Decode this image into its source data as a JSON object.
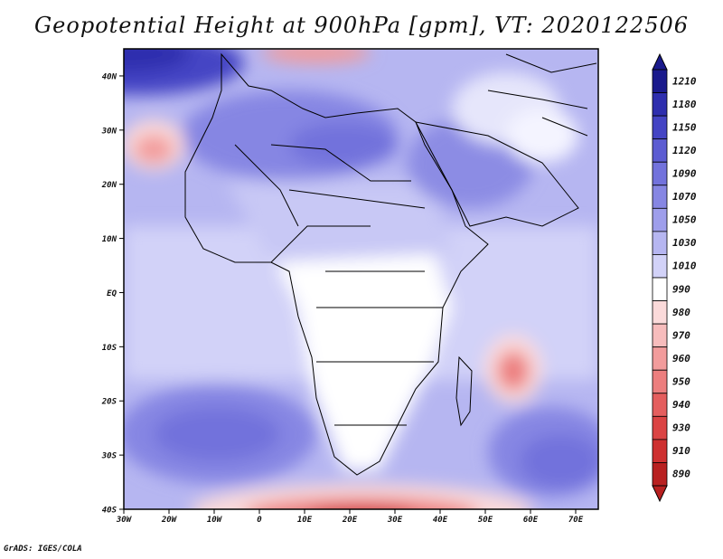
{
  "title": "Geopotential Height at 900hPa [gpm], VT: 2020122506",
  "credit": "GrADS: IGES/COLA",
  "map": {
    "lon_range": [
      -30,
      75
    ],
    "lat_range": [
      -40,
      45
    ],
    "lat_labels": [
      "40N",
      "30N",
      "20N",
      "10N",
      "EQ",
      "10S",
      "20S",
      "30S",
      "40S"
    ],
    "lat_values": [
      40,
      30,
      20,
      10,
      0,
      -10,
      -20,
      -30,
      -40
    ],
    "lon_labels": [
      "30W",
      "20W",
      "10W",
      "0",
      "10E",
      "20E",
      "30E",
      "40E",
      "50E",
      "60E",
      "70E"
    ],
    "lon_values": [
      -30,
      -20,
      -10,
      0,
      10,
      20,
      30,
      40,
      50,
      60,
      70
    ]
  },
  "colorbar": {
    "labels": [
      "1210",
      "1180",
      "1150",
      "1120",
      "1090",
      "1070",
      "1050",
      "1030",
      "1010",
      "990",
      "980",
      "970",
      "960",
      "950",
      "940",
      "930",
      "910",
      "890"
    ],
    "colors": [
      "#1a1a8c",
      "#2e2eae",
      "#4444c4",
      "#5c5cd2",
      "#7272dc",
      "#8686e3",
      "#9e9eeb",
      "#b6b6f1",
      "#d2d2f8",
      "#ffffff",
      "#fbdada",
      "#f7bcbc",
      "#f29c9c",
      "#ec7e7e",
      "#e45e5e",
      "#db4444",
      "#ce3030",
      "#b82020"
    ]
  }
}
